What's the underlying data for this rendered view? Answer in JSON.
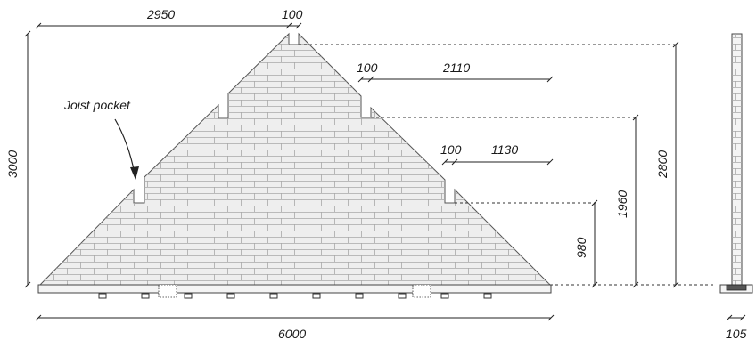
{
  "drawing": {
    "annotation": "Joist pocket",
    "dimensions": {
      "top_left_width": "2950",
      "top_notch": "100",
      "mid_notch": "100",
      "mid_width": "2110",
      "low_notch": "100",
      "low_width": "1130",
      "total_height": "3000",
      "height_lowest_step": "980",
      "height_middle_step": "1960",
      "height_top": "2800",
      "base_width": "6000",
      "section_width": "105"
    }
  }
}
